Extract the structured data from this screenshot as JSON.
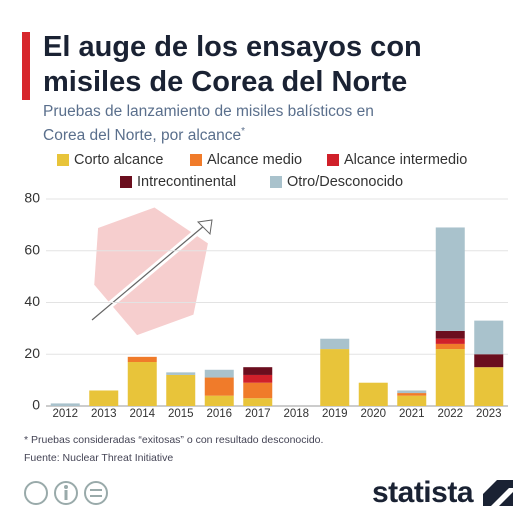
{
  "title": "El auge de los ensayos con misiles de Corea del Norte",
  "subtitle": "Pruebas de lanzamiento de misiles balísticos en Corea del Norte, por alcance",
  "subtitle_mark": "*",
  "footnote": "* Pruebas consideradas “exitosas” o con resultado desconocido.",
  "source": "Fuente: Nuclear Threat Initiative",
  "brand": "statista",
  "chart_data": {
    "type": "stacked_bar",
    "categories": [
      "2012",
      "2013",
      "2014",
      "2015",
      "2016",
      "2017",
      "2018",
      "2019",
      "2020",
      "2021",
      "2022",
      "2023"
    ],
    "series": [
      {
        "name": "Corto alcance",
        "color": "#e8c43a",
        "values": [
          0,
          6,
          17,
          12,
          4,
          3,
          0,
          22,
          9,
          4,
          22,
          15
        ]
      },
      {
        "name": "Alcance medio",
        "color": "#f07b2a",
        "values": [
          0,
          0,
          2,
          0,
          7,
          6,
          0,
          0,
          0,
          1,
          2,
          0
        ]
      },
      {
        "name": "Alcance intermedio",
        "color": "#d0202a",
        "values": [
          0,
          0,
          0,
          0,
          0,
          3,
          0,
          0,
          0,
          0,
          2,
          0
        ]
      },
      {
        "name": "Intrecontinental",
        "color": "#6b0e1e",
        "values": [
          0,
          0,
          0,
          0,
          0,
          3,
          0,
          0,
          0,
          0,
          3,
          5
        ]
      },
      {
        "name": "Otro/Desconocido",
        "color": "#a9c2cc",
        "values": [
          1,
          0,
          0,
          1,
          3,
          0,
          0,
          4,
          0,
          1,
          40,
          13
        ]
      }
    ],
    "ylim": [
      0,
      80
    ],
    "yticks": [
      0,
      20,
      40,
      60,
      80
    ],
    "grid": true
  }
}
